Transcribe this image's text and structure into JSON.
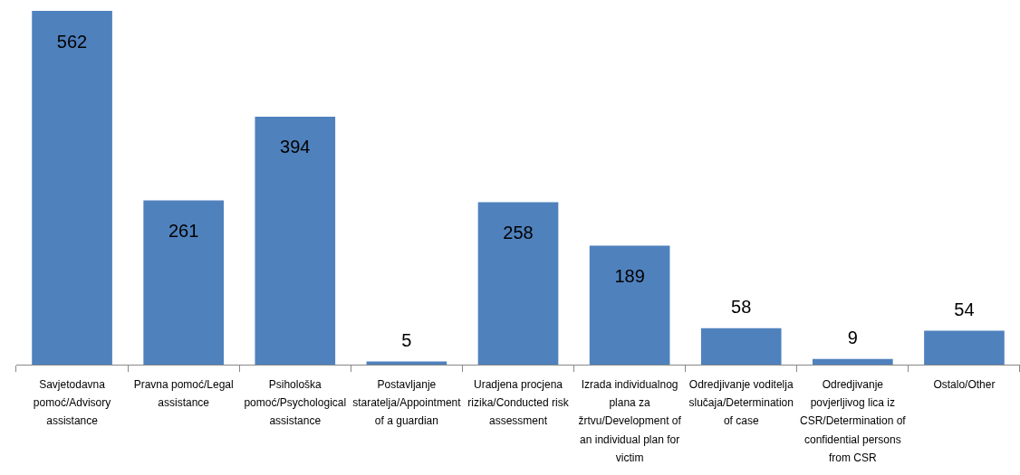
{
  "chart_data": {
    "type": "bar",
    "categories": [
      "Savjetodavna pomoć/Advisory assistance",
      "Pravna pomoć/Legal assistance",
      "Psihološka pomoć/Psychological assistance",
      "Postavljanje staratelja/Appointment of a guardian",
      "Uradjena procjena rizika/Conducted risk assessment",
      "Izrada individualnog plana za žrtvu/Development of an individual plan for victim",
      "Odredjivanje voditelja slučaja/Determination of case",
      "Odredjivanje povjerljivog lica iz CSR/Determination of confidential persons from CSR",
      "Ostalo/Other"
    ],
    "values": [
      562,
      261,
      394,
      5,
      258,
      189,
      58,
      9,
      54
    ],
    "color": "#4f81bd",
    "data_labels": true,
    "grid": false,
    "legend": false
  }
}
